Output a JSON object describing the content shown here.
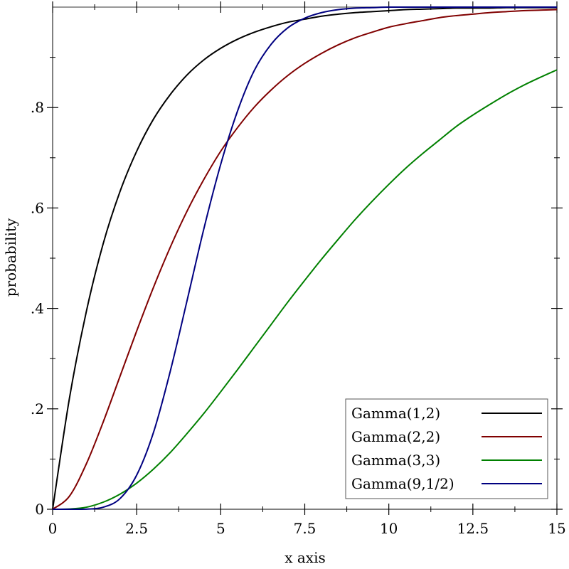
{
  "chart_data": {
    "type": "line",
    "title": "",
    "xlabel": "x axis",
    "ylabel": "probability",
    "xlim": [
      0,
      15
    ],
    "ylim": [
      0,
      1
    ],
    "x_ticks": [
      {
        "value": 0,
        "label": "0"
      },
      {
        "value": 2.5,
        "label": "2.5"
      },
      {
        "value": 5,
        "label": "5"
      },
      {
        "value": 7.5,
        "label": "7.5"
      },
      {
        "value": 10,
        "label": "10"
      },
      {
        "value": 12.5,
        "label": "12.5"
      },
      {
        "value": 15,
        "label": "15"
      }
    ],
    "y_ticks": [
      {
        "value": 0,
        "label": "0"
      },
      {
        "value": 0.2,
        "label": ".2"
      },
      {
        "value": 0.4,
        "label": ".4"
      },
      {
        "value": 0.6,
        "label": ".6"
      },
      {
        "value": 0.8,
        "label": ".8"
      }
    ],
    "grid": false,
    "legend_position": "bottom-right",
    "series": [
      {
        "name": "Gamma(1,2)",
        "color": "#000000",
        "x": [
          0,
          0.5,
          1,
          1.5,
          2,
          2.5,
          3,
          3.5,
          4,
          4.5,
          5,
          5.5,
          6,
          6.5,
          7,
          7.5,
          8,
          8.5,
          9,
          9.5,
          10,
          10.5,
          11,
          11.5,
          12,
          12.5,
          13,
          13.5,
          14,
          14.5,
          15
        ],
        "values": [
          0,
          0.221,
          0.393,
          0.528,
          0.632,
          0.713,
          0.777,
          0.826,
          0.865,
          0.895,
          0.918,
          0.936,
          0.95,
          0.961,
          0.97,
          0.976,
          0.982,
          0.986,
          0.989,
          0.991,
          0.993,
          0.995,
          0.996,
          0.997,
          0.998,
          0.998,
          0.998,
          0.999,
          0.999,
          0.999,
          0.999
        ]
      },
      {
        "name": "Gamma(2,2)",
        "color": "#800000",
        "x": [
          0,
          0.5,
          1,
          1.5,
          2,
          2.5,
          3,
          3.5,
          4,
          4.5,
          5,
          5.5,
          6,
          6.5,
          7,
          7.5,
          8,
          8.5,
          9,
          9.5,
          10,
          10.5,
          11,
          11.5,
          12,
          12.5,
          13,
          13.5,
          14,
          14.5,
          15
        ],
        "values": [
          0,
          0.026,
          0.09,
          0.173,
          0.264,
          0.355,
          0.442,
          0.522,
          0.594,
          0.657,
          0.713,
          0.76,
          0.801,
          0.835,
          0.864,
          0.888,
          0.908,
          0.925,
          0.939,
          0.95,
          0.96,
          0.967,
          0.973,
          0.979,
          0.983,
          0.986,
          0.989,
          0.991,
          0.993,
          0.994,
          0.995
        ]
      },
      {
        "name": "Gamma(3,3)",
        "color": "#008000",
        "x": [
          0,
          0.5,
          1,
          1.5,
          2,
          2.5,
          3,
          3.5,
          4,
          4.5,
          5,
          5.5,
          6,
          6.5,
          7,
          7.5,
          8,
          8.5,
          9,
          9.5,
          10,
          10.5,
          11,
          11.5,
          12,
          12.5,
          13,
          13.5,
          14,
          14.5,
          15
        ],
        "values": [
          0,
          0.0006,
          0.004,
          0.014,
          0.03,
          0.052,
          0.08,
          0.113,
          0.151,
          0.191,
          0.234,
          0.278,
          0.323,
          0.368,
          0.413,
          0.456,
          0.498,
          0.538,
          0.577,
          0.613,
          0.647,
          0.679,
          0.708,
          0.735,
          0.762,
          0.785,
          0.806,
          0.826,
          0.844,
          0.86,
          0.875
        ]
      },
      {
        "name": "Gamma(9,1/2)",
        "color": "#000080",
        "x": [
          0,
          0.5,
          1,
          1.5,
          2,
          2.5,
          3,
          3.5,
          4,
          4.5,
          5,
          5.5,
          6,
          6.5,
          7,
          7.5,
          8,
          8.5,
          9,
          9.5,
          10,
          10.5,
          11,
          11.5,
          12,
          12.5,
          13,
          13.5,
          14,
          14.5,
          15
        ],
        "values": [
          0,
          0,
          0.0002,
          0.004,
          0.021,
          0.068,
          0.153,
          0.275,
          0.416,
          0.559,
          0.687,
          0.793,
          0.874,
          0.926,
          0.959,
          0.978,
          0.989,
          0.995,
          0.998,
          0.999,
          1.0,
          1.0,
          1.0,
          1.0,
          1.0,
          1.0,
          1.0,
          1.0,
          1.0,
          1.0,
          1.0
        ]
      }
    ]
  }
}
